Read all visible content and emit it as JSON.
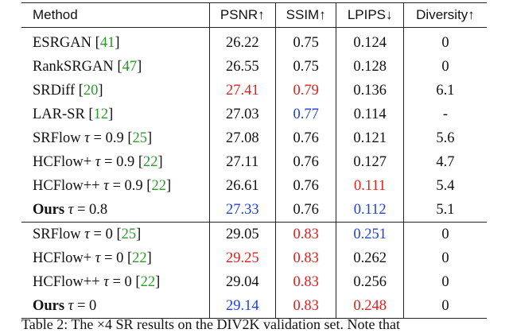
{
  "colors": {
    "best": "#e0201d",
    "second": "#1f3fe0",
    "citation": "#2a9a2a"
  },
  "headers": [
    "Method",
    "PSNR↑",
    "SSIM↑",
    "LPIPS↓",
    "Diversity↑"
  ],
  "rows": [
    {
      "name": "ESRGAN",
      "param": "",
      "cite": "41",
      "psnr": "26.22",
      "ssim": "0.75",
      "lpips": "0.124",
      "diversity": "0"
    },
    {
      "name": "RankSRGAN",
      "param": "",
      "cite": "47",
      "psnr": "26.55",
      "ssim": "0.75",
      "lpips": "0.128",
      "diversity": "0"
    },
    {
      "name": "SRDiff",
      "param": "",
      "cite": "20",
      "psnr": "27.41",
      "psnr_color": "red",
      "ssim": "0.79",
      "ssim_color": "red",
      "lpips": "0.136",
      "diversity": "6.1"
    },
    {
      "name": "LAR-SR",
      "param": "",
      "cite": "12",
      "psnr": "27.03",
      "ssim": "0.77",
      "ssim_color": "blue",
      "lpips": "0.114",
      "diversity": "-"
    },
    {
      "name": "SRFlow",
      "param": "0.9",
      "cite": "25",
      "psnr": "27.08",
      "ssim": "0.76",
      "lpips": "0.121",
      "diversity": "5.6"
    },
    {
      "name": "HCFlow+",
      "param": "0.9",
      "cite": "22",
      "psnr": "27.11",
      "ssim": "0.76",
      "lpips": "0.127",
      "diversity": "4.7"
    },
    {
      "name": "HCFlow++",
      "param": "0.9",
      "cite": "22",
      "psnr": "26.61",
      "ssim": "0.76",
      "lpips": "0.111",
      "lpips_color": "red",
      "diversity": "5.4"
    },
    {
      "name": "Ours",
      "bold": true,
      "param": "0.8",
      "cite": "",
      "psnr": "27.33",
      "psnr_color": "blue",
      "ssim": "0.76",
      "lpips": "0.112",
      "lpips_color": "blue",
      "diversity": "5.1"
    },
    {
      "name": "SRFlow",
      "param": "0",
      "cite": "25",
      "psnr": "29.05",
      "ssim": "0.83",
      "ssim_color": "red",
      "lpips": "0.251",
      "lpips_color": "blue",
      "diversity": "0",
      "group_start": true
    },
    {
      "name": "HCFlow+",
      "param": "0",
      "cite": "22",
      "psnr": "29.25",
      "psnr_color": "red",
      "ssim": "0.83",
      "ssim_color": "red",
      "lpips": "0.262",
      "diversity": "0"
    },
    {
      "name": "HCFlow++",
      "param": "0",
      "cite": "22",
      "psnr": "29.04",
      "ssim": "0.83",
      "ssim_color": "red",
      "lpips": "0.256",
      "diversity": "0"
    },
    {
      "name": "Ours",
      "bold": true,
      "param": "0",
      "cite": "",
      "psnr": "29.14",
      "psnr_color": "blue",
      "ssim": "0.83",
      "ssim_color": "red",
      "lpips": "0.248",
      "lpips_color": "red",
      "diversity": "0"
    }
  ],
  "tau_symbol": "τ",
  "equals": "=",
  "caption": "Table 2: The ×4 SR results on the DIV2K validation set. Note that"
}
